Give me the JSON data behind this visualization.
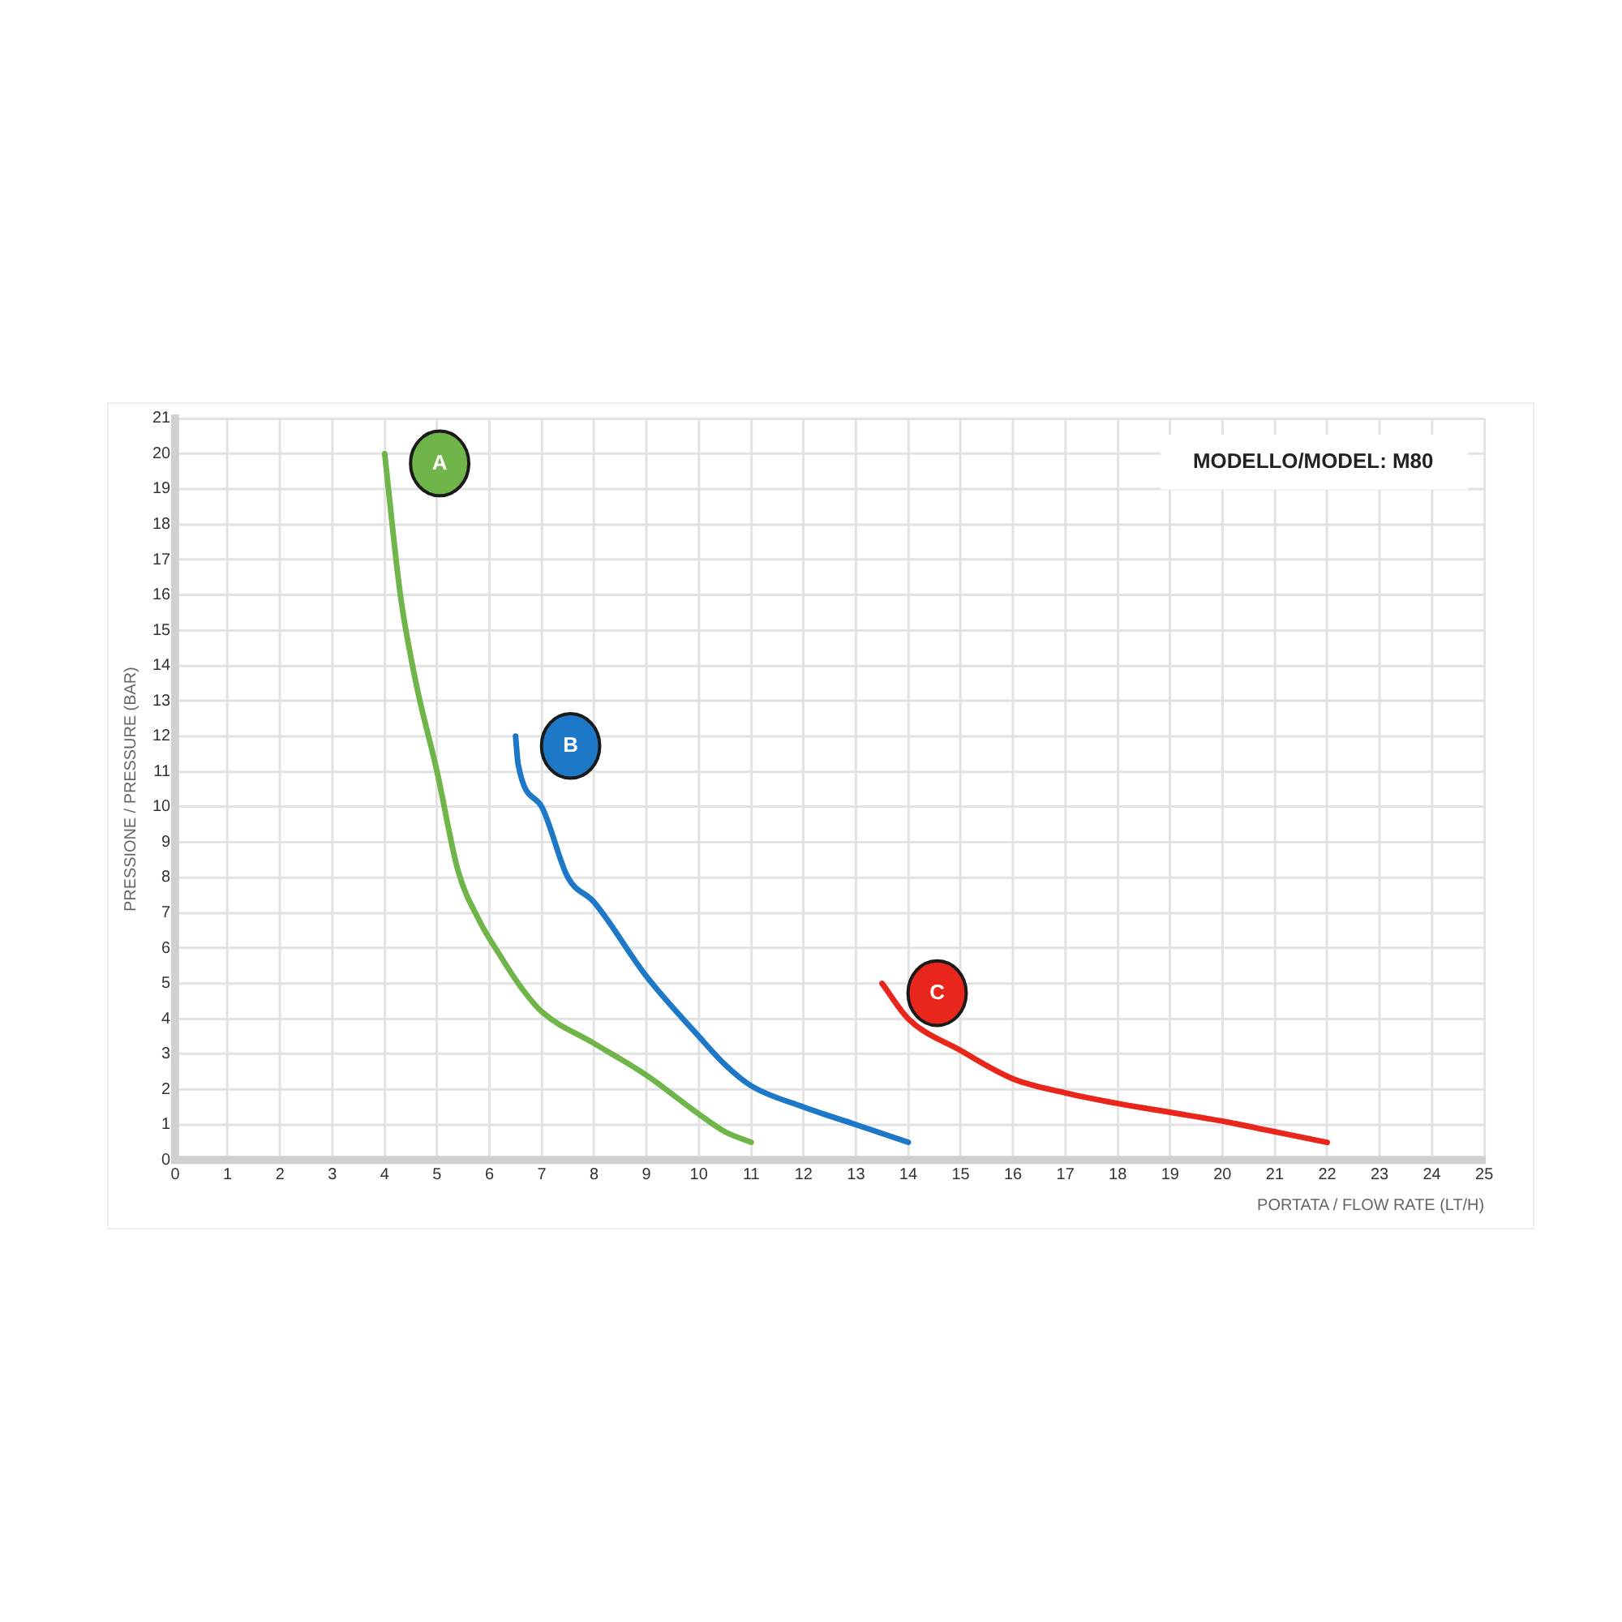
{
  "chart_data": {
    "type": "line",
    "title": "MODELLO/MODEL: M80",
    "xlabel": "PORTATA / FLOW RATE (LT/H)",
    "ylabel": "PRESSIONE / PRESSURE (BAR)",
    "xlim": [
      0,
      25
    ],
    "xticks": [
      0,
      1,
      2,
      3,
      4,
      5,
      6,
      7,
      8,
      9,
      10,
      11,
      12,
      13,
      14,
      15,
      16,
      17,
      18,
      19,
      20,
      21,
      22,
      23,
      24,
      25
    ],
    "ylim": [
      0,
      21
    ],
    "yticks": [
      0,
      1,
      2,
      3,
      4,
      5,
      6,
      7,
      8,
      9,
      10,
      11,
      12,
      13,
      14,
      15,
      16,
      17,
      18,
      19,
      20,
      21
    ],
    "grid": true,
    "legend": false,
    "marker": "none",
    "line_style": "solid",
    "series": [
      {
        "name": "A",
        "color": "#70b54a",
        "x": [
          4,
          4.3,
          4.6,
          5,
          5.4,
          5.8,
          6.2,
          6.6,
          7,
          8,
          9,
          10,
          10.5,
          11
        ],
        "values": [
          20,
          16,
          13.5,
          11,
          8.2,
          6.8,
          5.8,
          4.9,
          4.2,
          3.3,
          2.4,
          1.3,
          0.8,
          0.5
        ]
      },
      {
        "name": "B",
        "color": "#1e78c8",
        "x": [
          6.5,
          6.55,
          7,
          7.5,
          8,
          9,
          10,
          10.5,
          11,
          12,
          13,
          14
        ],
        "values": [
          12,
          11.2,
          10,
          8,
          7.3,
          5.2,
          3.5,
          2.7,
          2.1,
          1.5,
          1,
          0.5
        ]
      },
      {
        "name": "C",
        "color": "#e8261c",
        "x": [
          13.5,
          14,
          15,
          16,
          17,
          18,
          19,
          20,
          21,
          22
        ],
        "values": [
          5,
          4,
          3.1,
          2.3,
          1.9,
          1.6,
          1.35,
          1.1,
          0.8,
          0.5
        ]
      }
    ]
  }
}
